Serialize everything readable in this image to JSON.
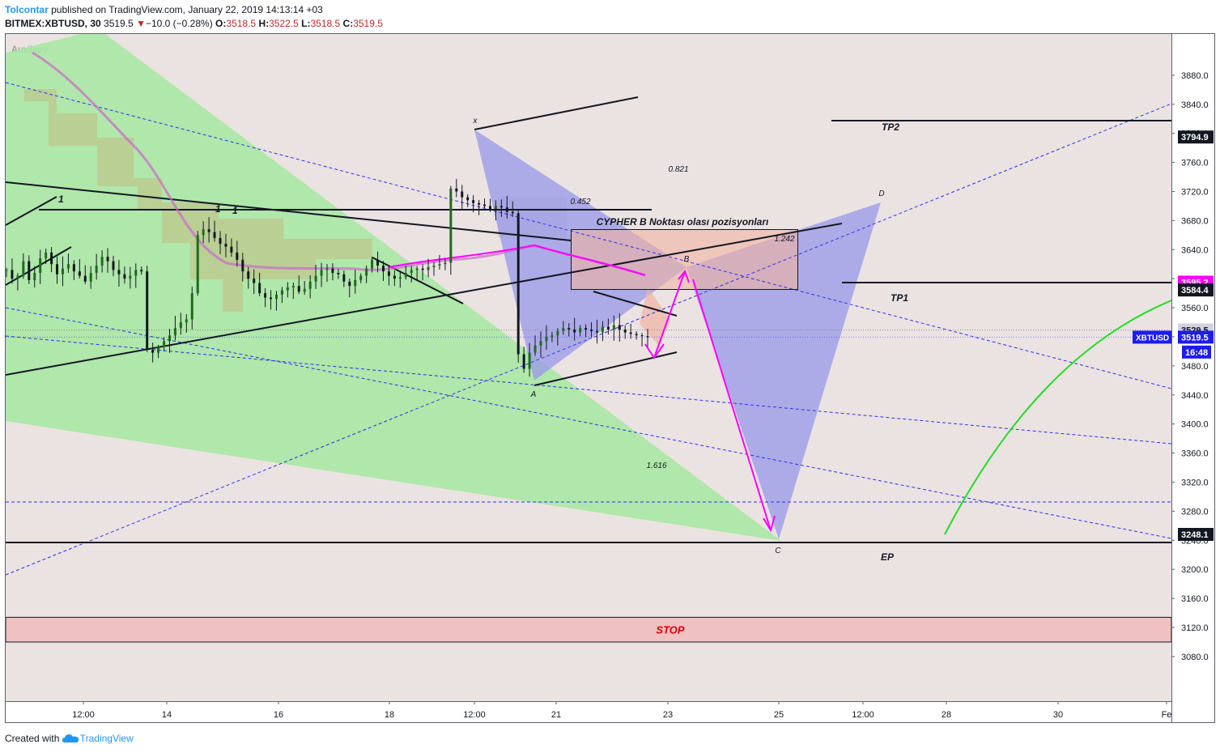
{
  "header": {
    "author": "Tolcontar",
    "published_text": "published on TradingView.com, January 22, 2019 14:13:14 +03",
    "symbol": "BITMEX:XBTUSD, 30",
    "last": "3519.5",
    "change": "−10.0 (−0.28%)",
    "open_label": "O:",
    "open": "3518.5",
    "high_label": "H:",
    "high": "3522.5",
    "low_label": "L:",
    "low": "3518.5",
    "close_label": "C:",
    "close": "3519.5",
    "down_arrow_icon": "triangle-down-icon"
  },
  "footer": {
    "created_with": "Created with",
    "brand": "TradingView",
    "brand_icon": "tradingview-cloud-icon"
  },
  "colors": {
    "background": "#ebe3e2",
    "green_zone": "#a6e7a0",
    "blue_pattern": "#9c9ce8",
    "magenta": "#ff00ff",
    "trend_blue": "#2a33e8",
    "stop_fill": "#efc1c1",
    "stop_text": "#e00000",
    "price_badge": "#1c1cf0",
    "ma_line": "#cc66cc"
  },
  "chart_data": {
    "type": "line",
    "symbol": "BITMEX:XBTUSD",
    "interval": "30",
    "panel_label": "Auxiliary",
    "y_axis": {
      "ticks": [
        3080,
        3120,
        3160,
        3200,
        3240,
        3280,
        3320,
        3360,
        3400,
        3440,
        3480,
        3520,
        3560,
        3600,
        3640,
        3680,
        3720,
        3760,
        3800,
        3840,
        3880
      ],
      "tick_labels": [
        "3080.0",
        "3120.0",
        "3160.0",
        "3200.0",
        "3240.0",
        "3280.0",
        "3320.0",
        "3360.0",
        "3400.0",
        "3440.0",
        "3480.0",
        "3520.0",
        "3560.0",
        "3600.0",
        "3640.0",
        "3680.0",
        "3720.0",
        "3760.0",
        "3800.0",
        "3840.0",
        "3880.0"
      ],
      "ylim": [
        3045,
        3910
      ]
    },
    "x_axis": {
      "tick_labels": [
        "12:00",
        "14",
        "16",
        "18",
        "12:00",
        "21",
        "23",
        "25",
        "12:00",
        "28",
        "30",
        "Fe"
      ]
    },
    "price_labels": [
      {
        "text": "3794.9",
        "value": 3794.9,
        "style": "black"
      },
      {
        "text": "3595.2",
        "value": 3595.2,
        "style": "magenta"
      },
      {
        "text": "3584.4",
        "value": 3584.4,
        "style": "black"
      },
      {
        "text": "3529.5",
        "value": 3529.5,
        "style": "gray"
      },
      {
        "text": "3519.5",
        "value": 3519.5,
        "style": "blue",
        "tag": "XBTUSD"
      },
      {
        "text": "16:48",
        "value": 3499,
        "style": "blue"
      },
      {
        "text": "3248.1",
        "value": 3248.1,
        "style": "black"
      }
    ],
    "levels": [
      {
        "name": "TP2",
        "value": 3794.9
      },
      {
        "name": "TP1",
        "value": 3584.4
      },
      {
        "name": "EP",
        "value": 3248.1
      }
    ],
    "stop_zone": {
      "label": "STOP",
      "from": 3100,
      "to": 3134
    },
    "pattern": {
      "title": "CYPHER B Noktası olası pozisyonları",
      "points": [
        {
          "label": "X",
          "x": "Jan 20 12:00",
          "y": 3776
        },
        {
          "label": "A",
          "x": "Jan 20 18:30",
          "y": 3453
        },
        {
          "label": "B",
          "x": "Jan 23 06:00",
          "y": 3595
        },
        {
          "label": "C",
          "x": "Jan 25 00:00",
          "y": 3248
        },
        {
          "label": "D",
          "x": "Jan 26 14:00",
          "y": 3688
        }
      ],
      "ratios": [
        "0.452",
        "0.821",
        "1.242",
        "1.616"
      ]
    },
    "wave_marks": [
      "1",
      "1",
      "1"
    ],
    "candles_close": [
      3612,
      3600,
      3604,
      3624,
      3598,
      3608,
      3628,
      3636,
      3620,
      3606,
      3614,
      3620,
      3610,
      3604,
      3596,
      3608,
      3618,
      3630,
      3624,
      3612,
      3606,
      3600,
      3604,
      3612,
      3610,
      3502,
      3498,
      3506,
      3514,
      3522,
      3532,
      3540,
      3544,
      3580,
      3660,
      3668,
      3664,
      3656,
      3648,
      3644,
      3636,
      3626,
      3610,
      3600,
      3594,
      3580,
      3574,
      3572,
      3578,
      3584,
      3588,
      3590,
      3582,
      3586,
      3596,
      3604,
      3612,
      3614,
      3608,
      3606,
      3596,
      3590,
      3598,
      3604,
      3614,
      3626,
      3618,
      3610,
      3604,
      3600,
      3602,
      3608,
      3612,
      3614,
      3612,
      3616,
      3618,
      3620,
      3622,
      3724,
      3720,
      3712,
      3708,
      3704,
      3702,
      3700,
      3696,
      3700,
      3698,
      3692,
      3690,
      3496,
      3476,
      3498,
      3508,
      3514,
      3520,
      3522,
      3528,
      3532,
      3530,
      3526,
      3532,
      3530,
      3528,
      3526,
      3534,
      3530,
      3536,
      3530,
      3526,
      3524,
      3522,
      3521,
      3519.5
    ]
  }
}
